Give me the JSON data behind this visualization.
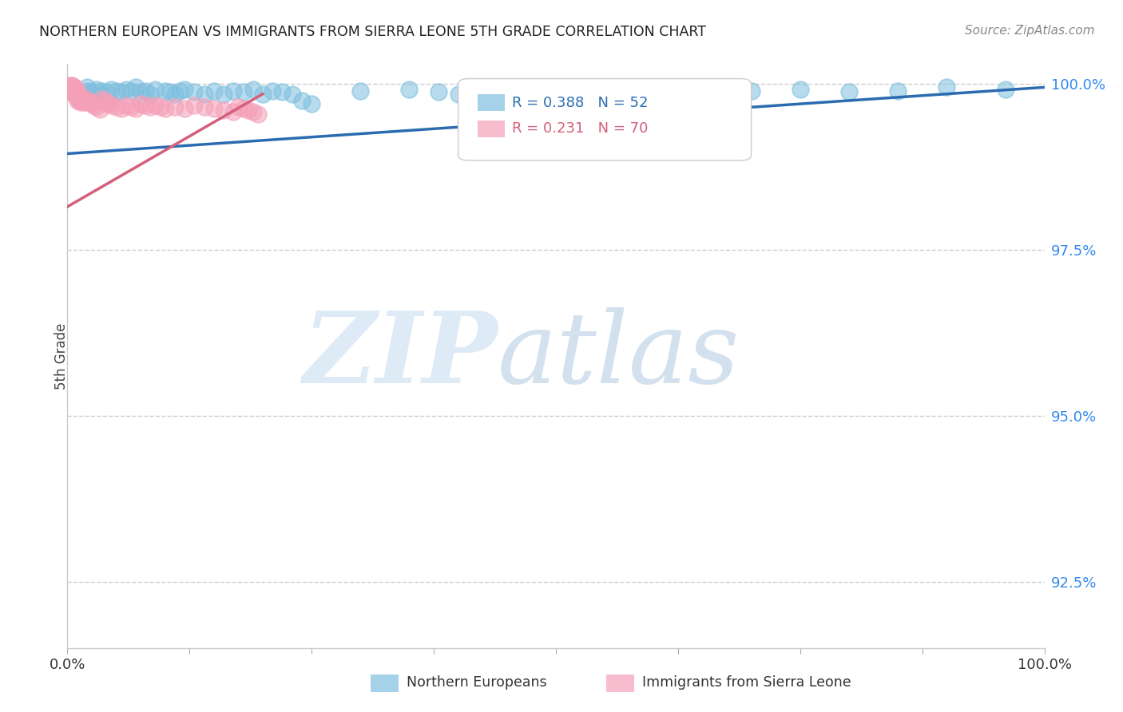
{
  "title": "NORTHERN EUROPEAN VS IMMIGRANTS FROM SIERRA LEONE 5TH GRADE CORRELATION CHART",
  "source": "Source: ZipAtlas.com",
  "xlabel": "",
  "ylabel": "5th Grade",
  "xlim": [
    0.0,
    1.0
  ],
  "ylim": [
    0.915,
    1.003
  ],
  "yticks": [
    0.925,
    0.95,
    0.975,
    1.0
  ],
  "ytick_labels": [
    "92.5%",
    "95.0%",
    "97.5%",
    "100.0%"
  ],
  "xtick_labels": [
    "0.0%",
    "100.0%"
  ],
  "legend1_label": "Northern Europeans",
  "legend2_label": "Immigrants from Sierra Leone",
  "blue_color": "#7fbfdf",
  "pink_color": "#f4a0b8",
  "blue_line_color": "#2b6cb0",
  "pink_line_color": "#d45f7a",
  "R_blue": 0.388,
  "N_blue": 52,
  "R_pink": 0.231,
  "N_pink": 70,
  "watermark_zip": "ZIP",
  "watermark_atlas": "atlas",
  "blue_trend_x0": 0.0,
  "blue_trend_y0": 0.9895,
  "blue_trend_x1": 1.0,
  "blue_trend_y1": 0.9995,
  "pink_trend_x0": 0.0,
  "pink_trend_y0": 0.9815,
  "pink_trend_x1": 0.2,
  "pink_trend_y1": 0.9985,
  "blue_points_x": [
    0.005,
    0.01,
    0.015,
    0.02,
    0.02,
    0.025,
    0.03,
    0.035,
    0.035,
    0.04,
    0.045,
    0.05,
    0.055,
    0.06,
    0.065,
    0.07,
    0.075,
    0.08,
    0.085,
    0.09,
    0.1,
    0.105,
    0.11,
    0.115,
    0.12,
    0.13,
    0.14,
    0.15,
    0.16,
    0.17,
    0.18,
    0.19,
    0.2,
    0.21,
    0.22,
    0.23,
    0.24,
    0.25,
    0.3,
    0.35,
    0.38,
    0.4,
    0.55,
    0.6,
    0.62,
    0.65,
    0.7,
    0.75,
    0.8,
    0.85,
    0.9,
    0.96
  ],
  "blue_points_y": [
    0.9995,
    0.999,
    0.9985,
    0.999,
    0.9995,
    0.9988,
    0.9992,
    0.9985,
    0.999,
    0.9988,
    0.9992,
    0.999,
    0.9988,
    0.9992,
    0.999,
    0.9995,
    0.9988,
    0.999,
    0.9985,
    0.9992,
    0.999,
    0.9988,
    0.9985,
    0.999,
    0.9992,
    0.9988,
    0.9985,
    0.999,
    0.9985,
    0.999,
    0.9988,
    0.9992,
    0.9985,
    0.999,
    0.9988,
    0.9985,
    0.9975,
    0.997,
    0.999,
    0.9992,
    0.9988,
    0.9985,
    0.999,
    0.9988,
    0.9992,
    0.9985,
    0.999,
    0.9992,
    0.9988,
    0.999,
    0.9995,
    0.9992
  ],
  "pink_points_x": [
    0.002,
    0.003,
    0.003,
    0.004,
    0.004,
    0.004,
    0.005,
    0.005,
    0.005,
    0.006,
    0.006,
    0.006,
    0.007,
    0.007,
    0.007,
    0.008,
    0.008,
    0.008,
    0.009,
    0.009,
    0.01,
    0.01,
    0.01,
    0.01,
    0.011,
    0.012,
    0.012,
    0.013,
    0.013,
    0.014,
    0.015,
    0.016,
    0.017,
    0.018,
    0.019,
    0.02,
    0.022,
    0.024,
    0.025,
    0.027,
    0.03,
    0.033,
    0.035,
    0.038,
    0.04,
    0.042,
    0.045,
    0.05,
    0.055,
    0.06,
    0.065,
    0.07,
    0.075,
    0.08,
    0.085,
    0.09,
    0.095,
    0.1,
    0.11,
    0.12,
    0.13,
    0.14,
    0.15,
    0.16,
    0.17,
    0.175,
    0.18,
    0.185,
    0.19,
    0.195
  ],
  "pink_points_y": [
    0.9998,
    0.9995,
    0.9992,
    0.9998,
    0.9995,
    0.9992,
    0.9998,
    0.9995,
    0.999,
    0.9995,
    0.9992,
    0.9988,
    0.9995,
    0.999,
    0.9985,
    0.9992,
    0.9988,
    0.9983,
    0.999,
    0.9985,
    0.999,
    0.9985,
    0.998,
    0.9975,
    0.9985,
    0.9982,
    0.9978,
    0.998,
    0.9975,
    0.9973,
    0.9978,
    0.9975,
    0.9972,
    0.9978,
    0.9975,
    0.9972,
    0.9975,
    0.9972,
    0.997,
    0.9968,
    0.9965,
    0.9962,
    0.9978,
    0.9975,
    0.9972,
    0.997,
    0.9968,
    0.9965,
    0.9963,
    0.9968,
    0.9965,
    0.9963,
    0.997,
    0.9968,
    0.9965,
    0.9968,
    0.9965,
    0.9963,
    0.9965,
    0.9963,
    0.9968,
    0.9965,
    0.9963,
    0.996,
    0.9958,
    0.9965,
    0.9963,
    0.996,
    0.9958,
    0.9955
  ]
}
